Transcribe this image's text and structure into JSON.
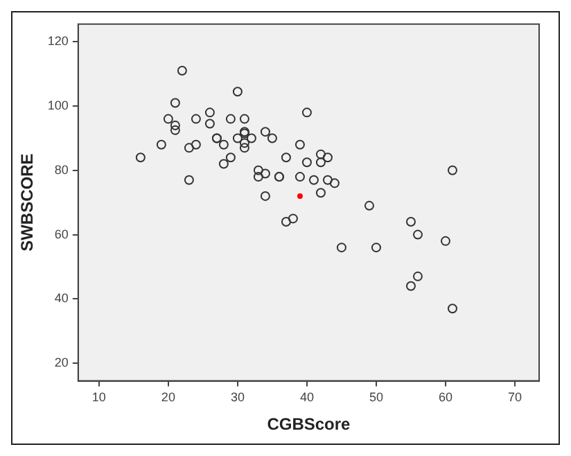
{
  "chart_data": {
    "type": "scatter",
    "xlabel": "CGBScore",
    "ylabel": "SWBSCORE",
    "series": [
      {
        "color": "#333333",
        "x": [
          22,
          30,
          21,
          20,
          24,
          26,
          26,
          29,
          31,
          21,
          21,
          19,
          23,
          24,
          16,
          27,
          27,
          28,
          30,
          29,
          28,
          23,
          31,
          40,
          31,
          31,
          32,
          31,
          34,
          35,
          39,
          37,
          40,
          42,
          42,
          43,
          33,
          33,
          34,
          36,
          36,
          39,
          41,
          43,
          44,
          42,
          34,
          37,
          38,
          45,
          50,
          49,
          61,
          55,
          56,
          60,
          56,
          55,
          61
        ],
        "values": [
          111,
          104.5,
          101,
          96,
          96,
          98,
          94.5,
          96,
          96,
          94,
          92.5,
          88,
          87,
          88,
          84,
          90,
          90,
          88,
          90,
          84,
          82,
          77,
          91.5,
          98,
          92,
          88.5,
          90,
          87,
          92,
          90,
          88,
          84,
          82.5,
          85,
          82.5,
          84,
          80,
          78,
          79,
          78,
          78,
          78,
          77,
          77,
          76,
          73,
          72,
          64,
          65,
          56,
          56,
          69,
          80,
          64,
          60,
          58,
          47,
          44,
          37
        ]
      },
      {
        "color": "#ff0000",
        "x": [
          39
        ],
        "values": [
          72
        ]
      }
    ],
    "xlim": [
      7,
      73.5
    ],
    "ylim": [
      14.5,
      125.5
    ],
    "xticks": [
      10,
      20,
      30,
      40,
      50,
      60,
      70
    ],
    "yticks": [
      20,
      40,
      60,
      80,
      100,
      120
    ],
    "grid": false,
    "legend": false,
    "marker": "circle"
  }
}
